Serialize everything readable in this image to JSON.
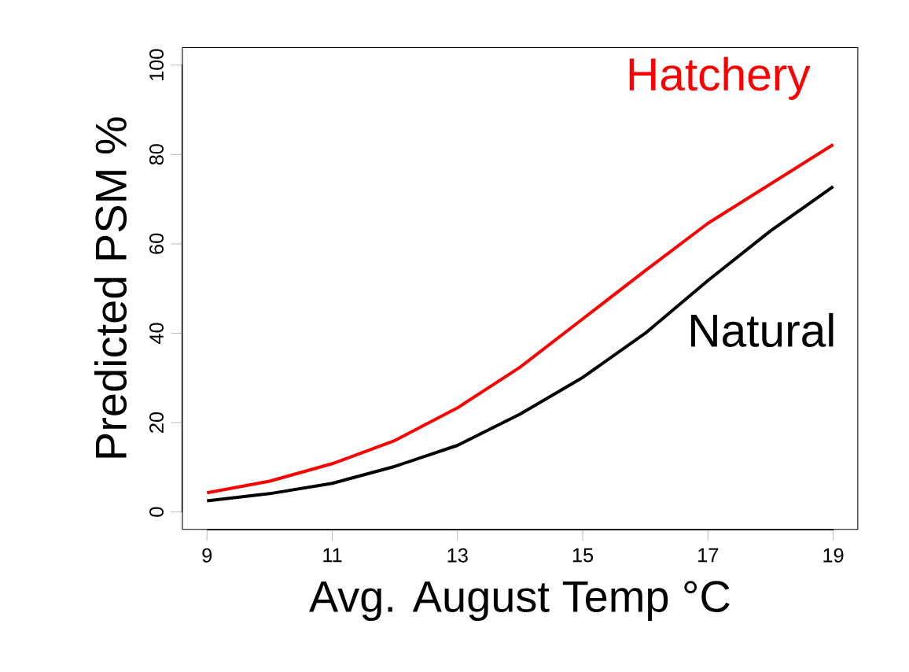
{
  "chart_data": {
    "type": "line",
    "xlabel": "Avg. August Temp °C",
    "ylabel": "Predicted PSM %",
    "x": [
      9,
      10,
      11,
      12,
      13,
      14,
      15,
      16,
      17,
      18,
      19
    ],
    "xlim": [
      8.6,
      19.4
    ],
    "xticks": [
      9,
      11,
      13,
      15,
      17,
      19
    ],
    "ylim": [
      -4,
      104
    ],
    "yticks": [
      0,
      20,
      40,
      60,
      80,
      100
    ],
    "grid": false,
    "legend": false,
    "marker": "none",
    "line_style": "solid",
    "series": [
      {
        "name": "Hatchery",
        "color": "#ff0000",
        "values": [
          4.3,
          6.9,
          10.8,
          16,
          23.3,
          32.4,
          43.2,
          54,
          64.6,
          73.4,
          82.2
        ]
      },
      {
        "name": "Natural",
        "color": "#000000",
        "values": [
          2.5,
          4.1,
          6.4,
          10.2,
          14.9,
          21.9,
          30.1,
          40,
          51.8,
          62.9,
          72.8
        ]
      }
    ]
  }
}
